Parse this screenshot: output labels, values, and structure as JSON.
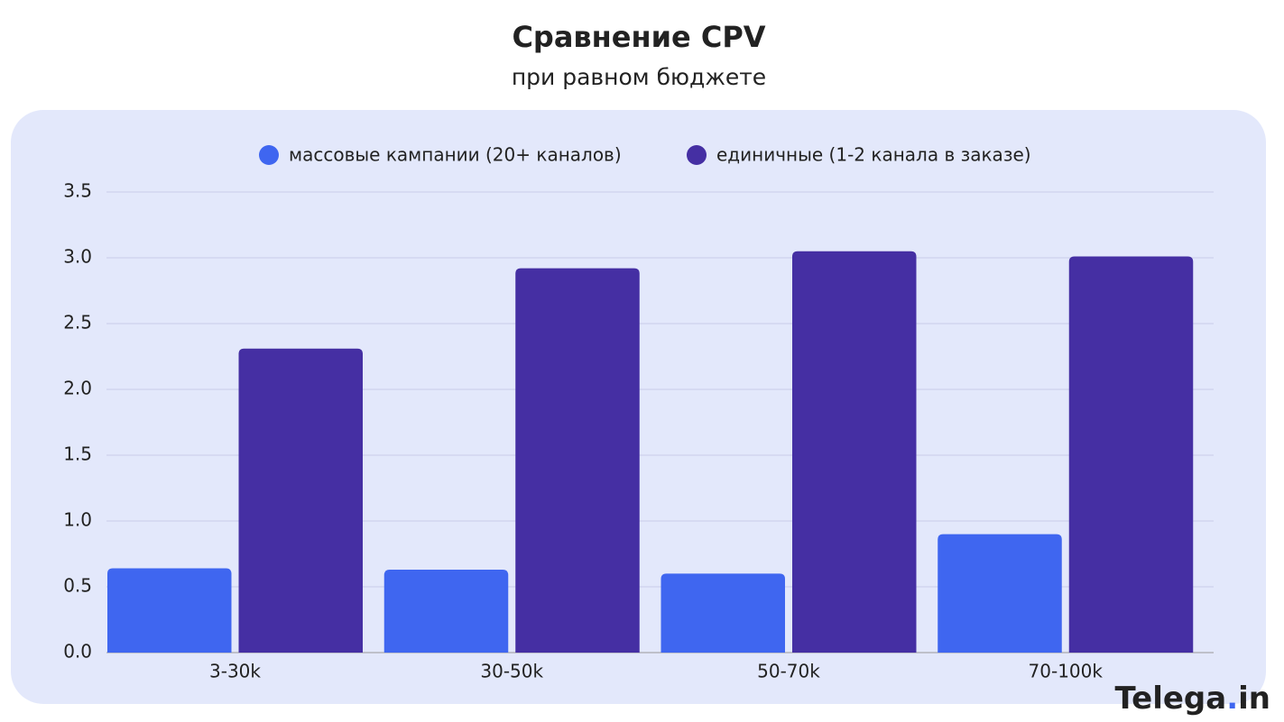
{
  "chart_data": {
    "type": "bar",
    "title": "Сравнение CPV",
    "subtitle": "при равном бюджете",
    "categories": [
      "3-30k",
      "30-50k",
      "50-70k",
      "70-100k"
    ],
    "series": [
      {
        "name": "массовые кампании (20+ каналов)",
        "color": "#3f66f0",
        "values": [
          0.64,
          0.63,
          0.6,
          0.9
        ]
      },
      {
        "name": "единичные (1-2 канала в заказе)",
        "color": "#452fa3",
        "values": [
          2.31,
          2.92,
          3.05,
          3.01
        ]
      }
    ],
    "ylim": [
      0,
      3.5
    ],
    "yticks": [
      {
        "value": 0,
        "label": "0.0"
      },
      0.5,
      {
        "value": 1,
        "label": "1.0"
      },
      1.5,
      {
        "value": 2,
        "label": "2.0"
      },
      2.5,
      {
        "value": 3,
        "label": "3.0"
      },
      3.5
    ],
    "grid": true,
    "legend": "top"
  },
  "brand": {
    "name": "Telega",
    "dot": ".",
    "suffix": "in"
  }
}
